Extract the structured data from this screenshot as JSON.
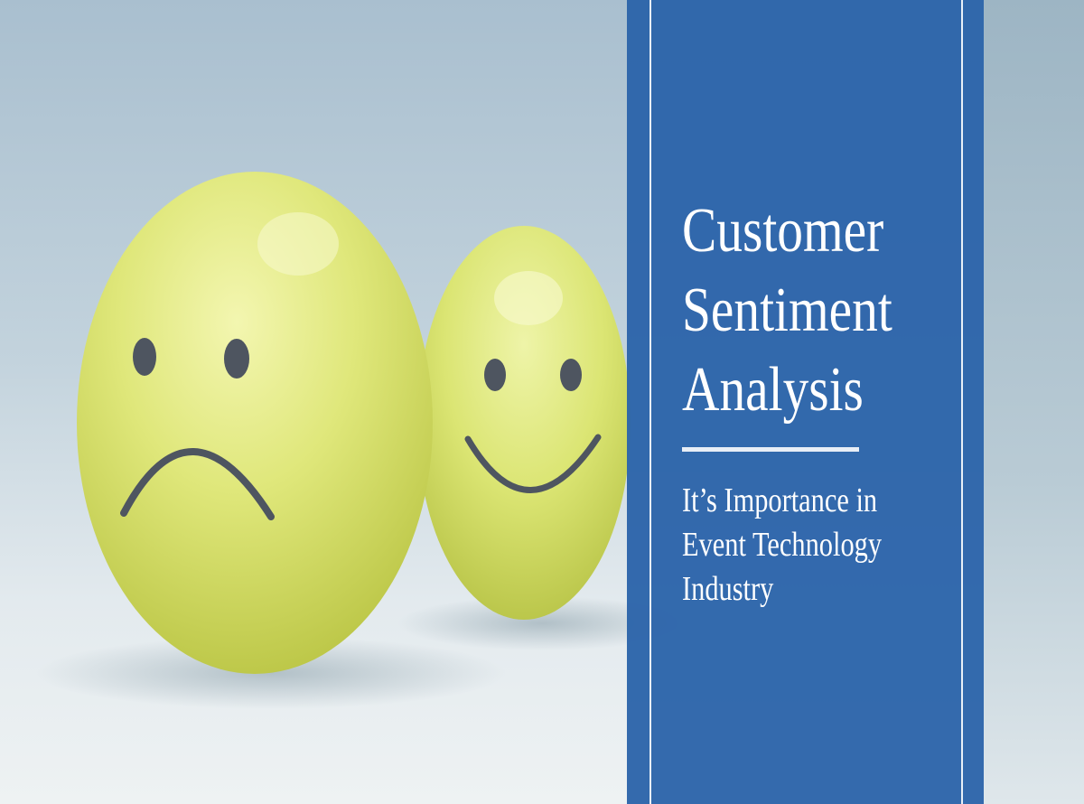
{
  "banner": {
    "title_lines": [
      "Customer",
      "Sentiment",
      "Analysis"
    ],
    "subtitle_lines": [
      "It’s Importance in",
      "Event Technology",
      "Industry"
    ],
    "colors": {
      "panel": "#2f68aa",
      "accent_line": "#e9f0f8",
      "egg": "#d9e46a"
    },
    "image_subject": [
      "sad-face-egg",
      "happy-face-egg"
    ]
  }
}
